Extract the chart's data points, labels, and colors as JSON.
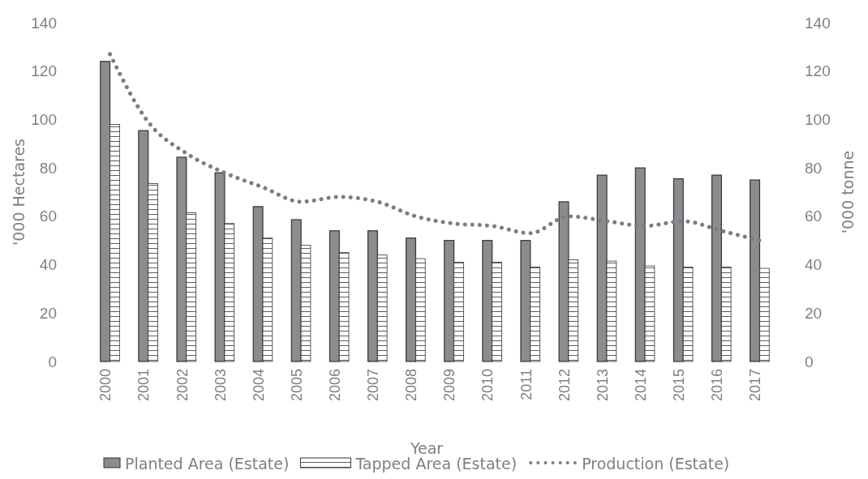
{
  "chart_data": {
    "type": "bar",
    "xlabel": "Year",
    "ylabel": "'000 Hectares",
    "y2label": "'000 tonne",
    "categories": [
      "2000",
      "2001",
      "2002",
      "2003",
      "2004",
      "2005",
      "2006",
      "2007",
      "2008",
      "2009",
      "2010",
      "2011",
      "2012",
      "2013",
      "2014",
      "2015",
      "2016",
      "2017"
    ],
    "series": [
      {
        "name": "Planted Area (Estate)",
        "color": "#8a8c90",
        "values": [
          124,
          95.4,
          84.4,
          78,
          64,
          58.6,
          54,
          54,
          51,
          50,
          50,
          50,
          66,
          77,
          80,
          75.5,
          77,
          75
        ]
      },
      {
        "name": "Tapped Area (Estate)",
        "color": "#333333",
        "values": [
          98,
          73.5,
          61.5,
          57,
          51,
          48,
          45,
          44,
          42.5,
          41,
          41,
          39,
          42,
          41.5,
          39.5,
          39,
          39,
          38.5
        ]
      },
      {
        "name": "Production (Estate)",
        "type": "line",
        "axis": "y2",
        "color": "#7b7d82",
        "line_style": "dotted",
        "values": [
          127,
          99,
          86,
          78,
          72,
          66,
          68,
          66,
          60,
          57,
          56,
          53,
          60,
          58,
          56,
          58,
          54,
          50
        ]
      }
    ],
    "ylim": [
      0,
      140
    ],
    "yticks": [
      0,
      20,
      40,
      60,
      80,
      100,
      120,
      140
    ],
    "y2lim": [
      0,
      140
    ],
    "y2ticks": [
      0,
      20,
      40,
      60,
      80,
      100,
      120,
      140
    ],
    "grid": false,
    "legend": "bottom"
  }
}
